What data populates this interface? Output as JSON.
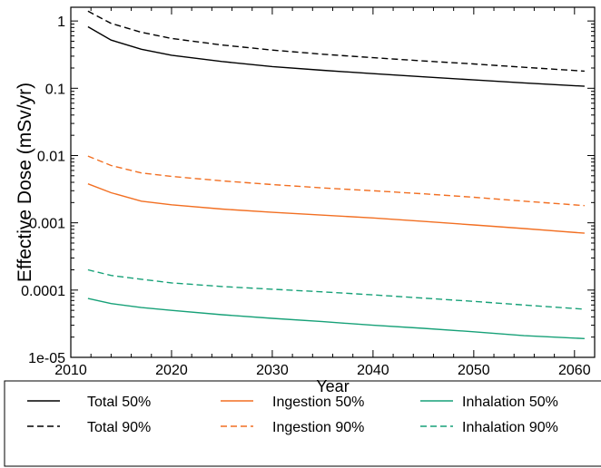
{
  "chart_data": {
    "type": "line",
    "title": "",
    "xlabel": "Year",
    "ylabel": "Effective Dose (mSv/yr)",
    "x_scale": "linear",
    "y_scale": "log",
    "xlim": [
      2010,
      2062
    ],
    "ylim": [
      1e-05,
      1.6
    ],
    "x_ticks": [
      2010,
      2020,
      2030,
      2040,
      2050,
      2060
    ],
    "x_tick_labels": [
      "2010",
      "2020",
      "2030",
      "2040",
      "2050",
      "2060"
    ],
    "y_ticks": [
      1e-05,
      0.0001,
      0.001,
      0.01,
      0.1,
      1
    ],
    "y_tick_labels": [
      "1e-05",
      "0.0001",
      "0.001",
      "0.01",
      "0.1",
      "1"
    ],
    "grid": false,
    "legend_position": "bottom",
    "series": [
      {
        "name": "Total 50%",
        "color": "#000000",
        "dash": "solid",
        "x": [
          2011.7,
          2014,
          2017,
          2020,
          2025,
          2030,
          2035,
          2040,
          2045,
          2050,
          2055,
          2061
        ],
        "y": [
          0.82,
          0.52,
          0.38,
          0.31,
          0.25,
          0.21,
          0.185,
          0.165,
          0.148,
          0.133,
          0.12,
          0.107
        ]
      },
      {
        "name": "Total 90%",
        "color": "#000000",
        "dash": "dashed",
        "x": [
          2011.7,
          2014,
          2017,
          2020,
          2025,
          2030,
          2035,
          2040,
          2045,
          2050,
          2055,
          2061
        ],
        "y": [
          1.4,
          0.92,
          0.68,
          0.55,
          0.44,
          0.37,
          0.32,
          0.285,
          0.255,
          0.23,
          0.205,
          0.18
        ]
      },
      {
        "name": "Ingestion 50%",
        "color": "#f26f22",
        "dash": "solid",
        "x": [
          2011.7,
          2014,
          2017,
          2020,
          2025,
          2030,
          2035,
          2040,
          2045,
          2050,
          2055,
          2061
        ],
        "y": [
          0.0038,
          0.0028,
          0.0021,
          0.00185,
          0.0016,
          0.00143,
          0.0013,
          0.00118,
          0.00105,
          0.00093,
          0.00082,
          0.0007
        ]
      },
      {
        "name": "Ingestion 90%",
        "color": "#f26f22",
        "dash": "dashed",
        "x": [
          2011.7,
          2014,
          2017,
          2020,
          2025,
          2030,
          2035,
          2040,
          2045,
          2050,
          2055,
          2061
        ],
        "y": [
          0.0098,
          0.0071,
          0.0055,
          0.0049,
          0.0042,
          0.0037,
          0.0033,
          0.003,
          0.0027,
          0.0024,
          0.0021,
          0.0018
        ]
      },
      {
        "name": "Inhalation 50%",
        "color": "#17a178",
        "dash": "solid",
        "x": [
          2011.7,
          2014,
          2017,
          2020,
          2025,
          2030,
          2035,
          2040,
          2045,
          2050,
          2055,
          2061
        ],
        "y": [
          7.5e-05,
          6.3e-05,
          5.5e-05,
          5e-05,
          4.3e-05,
          3.8e-05,
          3.4e-05,
          3e-05,
          2.7e-05,
          2.4e-05,
          2.1e-05,
          1.9e-05
        ]
      },
      {
        "name": "Inhalation 90%",
        "color": "#17a178",
        "dash": "dashed",
        "x": [
          2011.7,
          2014,
          2017,
          2020,
          2025,
          2030,
          2035,
          2040,
          2045,
          2050,
          2055,
          2061
        ],
        "y": [
          0.0002,
          0.000165,
          0.000145,
          0.000128,
          0.000113,
          0.000103,
          9.4e-05,
          8.5e-05,
          7.6e-05,
          6.8e-05,
          6e-05,
          5.2e-05
        ]
      }
    ]
  }
}
